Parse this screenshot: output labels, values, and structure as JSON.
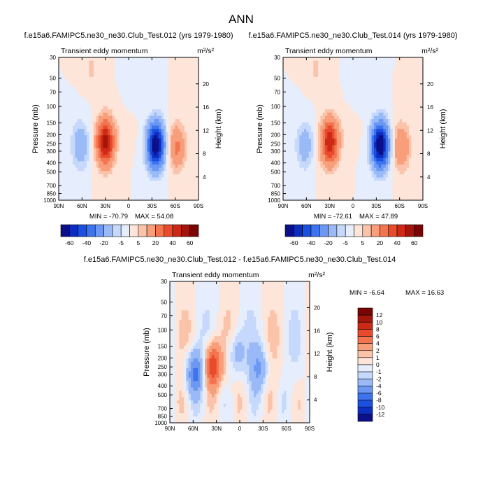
{
  "figure_title": "ANN",
  "chart_data": [
    {
      "type": "heatmap",
      "title": "f.e15a6.FAMIPC5.ne30_ne30.Club_Test.012 (yrs 1979-1980)",
      "left_label": "Transient eddy momentum",
      "units": "m²/s²",
      "ylabel": "Pressure (mb)",
      "ylabel_right": "Height (km)",
      "x_ticks": [
        "90N",
        "60N",
        "30N",
        "0",
        "30S",
        "60S",
        "90S"
      ],
      "y_ticks": [
        "30",
        "50",
        "70",
        "100",
        "150",
        "200",
        "250",
        "300",
        "400",
        "500",
        "700",
        "850",
        "1000"
      ],
      "height_ticks": [
        "20",
        "16",
        "12",
        "8",
        "4"
      ],
      "min_label": "MIN = -70.79",
      "max_label": "MAX =  54.08",
      "min": -70.79,
      "max": 54.08,
      "features": [
        {
          "lat": 30,
          "p": 240,
          "amp": 54
        },
        {
          "lat": -35,
          "p": 260,
          "amp": -71
        },
        {
          "lat": 62,
          "p": 260,
          "amp": -18
        },
        {
          "lat": -62,
          "p": 270,
          "amp": 22
        }
      ]
    },
    {
      "type": "heatmap",
      "title": "f.e15a6.FAMIPC5.ne30_ne30.Club_Test.014 (yrs 1979-1980)",
      "left_label": "Transient eddy momentum",
      "units": "m²/s²",
      "ylabel": "Pressure (mb)",
      "ylabel_right": "Height (km)",
      "x_ticks": [
        "90N",
        "60N",
        "30N",
        "0",
        "30S",
        "60S",
        "90S"
      ],
      "y_ticks": [
        "30",
        "50",
        "70",
        "100",
        "150",
        "200",
        "250",
        "300",
        "400",
        "500",
        "700",
        "850",
        "1000"
      ],
      "height_ticks": [
        "20",
        "16",
        "12",
        "8",
        "4"
      ],
      "min_label": "MIN = -72.61",
      "max_label": "MAX =  47.89",
      "min": -72.61,
      "max": 47.89,
      "features": [
        {
          "lat": 30,
          "p": 240,
          "amp": 48
        },
        {
          "lat": -35,
          "p": 260,
          "amp": -73
        },
        {
          "lat": 62,
          "p": 260,
          "amp": -16
        },
        {
          "lat": -62,
          "p": 270,
          "amp": 20
        }
      ]
    },
    {
      "type": "heatmap",
      "title": "f.e15a6.FAMIPC5.ne30_ne30.Club_Test.012 - f.e15a6.FAMIPC5.ne30_ne30.Club_Test.014",
      "left_label": "Transient eddy momentum",
      "units": "m²/s²",
      "ylabel": "Pressure (mb)",
      "ylabel_right": "Height (km)",
      "x_ticks": [
        "90N",
        "60N",
        "30N",
        "0",
        "30S",
        "60S",
        "90S"
      ],
      "y_ticks": [
        "30",
        "50",
        "70",
        "100",
        "150",
        "200",
        "250",
        "300",
        "400",
        "500",
        "700",
        "850",
        "1000"
      ],
      "height_ticks": [
        "20",
        "16",
        "12",
        "8",
        "4"
      ],
      "min_label": "MIN =  -6.64",
      "max_label": "MAX =  16.63",
      "min": -6.64,
      "max": 16.63,
      "features": [
        {
          "lat": 58,
          "p": 290,
          "amp": -6.6
        },
        {
          "lat": 35,
          "p": 240,
          "amp": 8
        },
        {
          "lat": 5,
          "p": 180,
          "amp": -3
        },
        {
          "lat": -25,
          "p": 260,
          "amp": -4
        }
      ]
    }
  ],
  "colorbars": {
    "main": {
      "levels": [
        "-60",
        "-40",
        "-20",
        "-5",
        "5",
        "20",
        "40",
        "60"
      ],
      "colors": [
        "#0b0f8a",
        "#0d2dbf",
        "#1b4fe0",
        "#3d74ee",
        "#6c98f3",
        "#9abaf7",
        "#c6d8fb",
        "#e6eefd",
        "#fde5da",
        "#fbc4aa",
        "#f89e7b",
        "#f37550",
        "#e94a2b",
        "#cc2a16",
        "#a4150c",
        "#7a0505"
      ]
    },
    "diff": {
      "levels": [
        "12",
        "10",
        "8",
        "6",
        "4",
        "2",
        "1",
        "0",
        "-1",
        "-2",
        "-4",
        "-6",
        "-8",
        "-10",
        "-12"
      ],
      "colors": [
        "#7a0505",
        "#a4150c",
        "#cc2a16",
        "#e94a2b",
        "#f37550",
        "#f89e7b",
        "#fbc4aa",
        "#fde5da",
        "#e6eefd",
        "#c6d8fb",
        "#9abaf7",
        "#6c98f3",
        "#3d74ee",
        "#1b4fe0",
        "#0d2dbf",
        "#0b0f8a"
      ]
    }
  }
}
